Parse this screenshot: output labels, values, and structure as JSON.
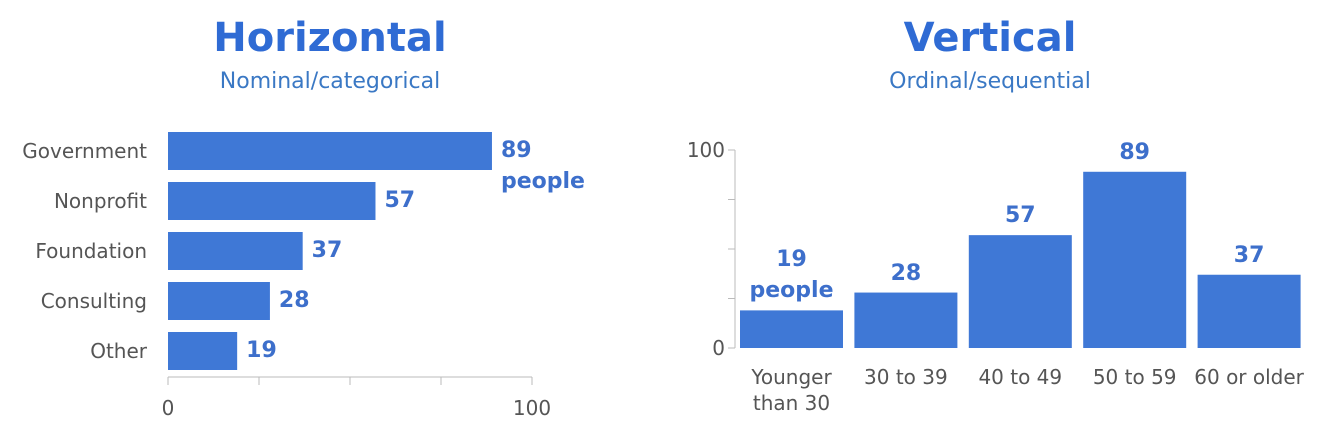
{
  "chart_data": [
    {
      "type": "bar",
      "orientation": "horizontal",
      "title": "Horizontal",
      "subtitle": "Nominal/categorical",
      "categories": [
        "Government",
        "Nonprofit",
        "Foundation",
        "Consulting",
        "Other"
      ],
      "values": [
        89,
        57,
        37,
        28,
        19
      ],
      "value_labels": [
        "89\npeople",
        "57",
        "37",
        "28",
        "19"
      ],
      "color": "#3f78d6",
      "xlim": [
        0,
        100
      ],
      "xticks": [
        0,
        100
      ],
      "xticks_minor": [
        25,
        50,
        75
      ]
    },
    {
      "type": "bar",
      "orientation": "vertical",
      "title": "Vertical",
      "subtitle": "Ordinal/sequential",
      "categories": [
        "Younger than 30",
        "30 to 39",
        "40 to 49",
        "50 to 59",
        "60 or older"
      ],
      "values": [
        19,
        28,
        57,
        89,
        37
      ],
      "value_labels": [
        "19\npeople",
        "28",
        "57",
        "89",
        "37"
      ],
      "color": "#3f78d6",
      "ylim": [
        0,
        100
      ],
      "yticks": [
        0,
        100
      ],
      "yticks_minor": [
        25,
        50,
        75
      ]
    }
  ]
}
